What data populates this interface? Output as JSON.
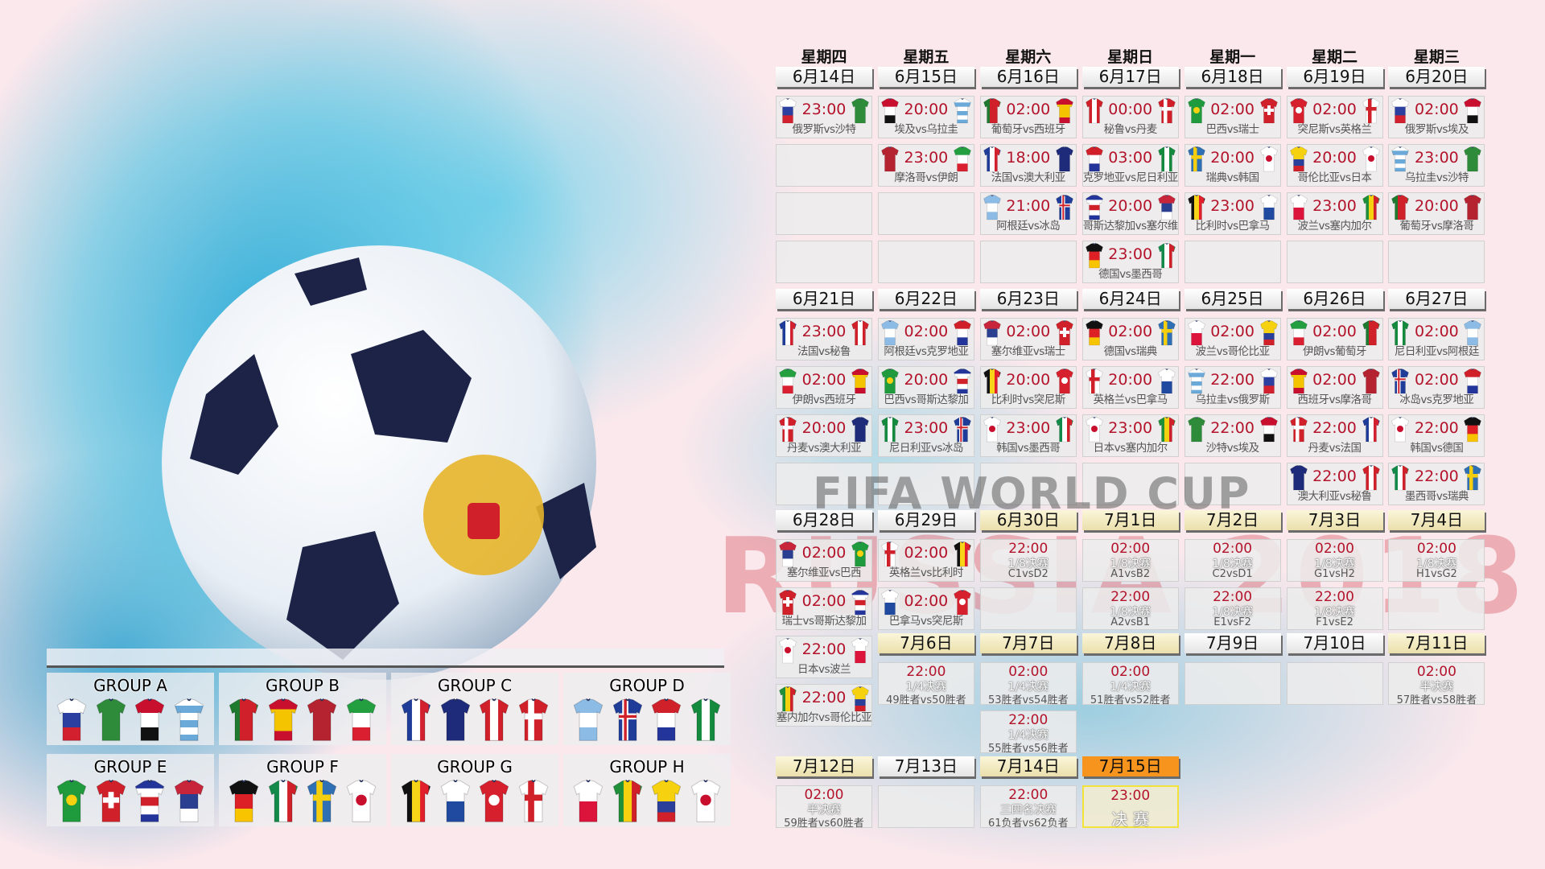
{
  "watermark": {
    "line1": "FIFA WORLD CUP",
    "line2": "RUSSIA 2018"
  },
  "weekdays": [
    "星期四",
    "星期五",
    "星期六",
    "星期日",
    "星期一",
    "星期二",
    "星期三"
  ],
  "teams": {
    "russia": {
      "pattern": "h",
      "colors": [
        "#ffffff",
        "#2b3fa0",
        "#d3202e"
      ]
    },
    "saudi": {
      "pattern": "solid",
      "colors": [
        "#2e8b3a"
      ]
    },
    "egypt": {
      "pattern": "h",
      "colors": [
        "#c8102e",
        "#ffffff",
        "#111111"
      ]
    },
    "uruguay": {
      "pattern": "h",
      "colors": [
        "#ffffff",
        "#6aa9d8",
        "#ffffff",
        "#6aa9d8",
        "#ffffff",
        "#6aa9d8"
      ]
    },
    "portugal": {
      "pattern": "v",
      "colors": [
        "#1d7a2e",
        "#d0202a",
        "#d0202a"
      ]
    },
    "spain": {
      "pattern": "h",
      "colors": [
        "#c8102e",
        "#f5c400",
        "#f5c400",
        "#c8102e"
      ]
    },
    "morocco": {
      "pattern": "solid",
      "colors": [
        "#b52330"
      ]
    },
    "iran": {
      "pattern": "h",
      "colors": [
        "#239f40",
        "#ffffff",
        "#da2030"
      ]
    },
    "france": {
      "pattern": "v",
      "colors": [
        "#1f3c99",
        "#ffffff",
        "#d3202e"
      ]
    },
    "australia": {
      "pattern": "solid",
      "colors": [
        "#1d2b7a"
      ]
    },
    "peru": {
      "pattern": "v",
      "colors": [
        "#d0202a",
        "#ffffff",
        "#d0202a"
      ]
    },
    "denmark": {
      "pattern": "cross",
      "colors": [
        "#d0202a",
        "#ffffff"
      ]
    },
    "argentina": {
      "pattern": "h",
      "colors": [
        "#8cbce6",
        "#ffffff",
        "#8cbce6"
      ]
    },
    "iceland": {
      "pattern": "cross",
      "colors": [
        "#1f3c99",
        "#ffffff",
        "#d0202a"
      ]
    },
    "croatia": {
      "pattern": "h",
      "colors": [
        "#d0202a",
        "#ffffff",
        "#23359a"
      ]
    },
    "nigeria": {
      "pattern": "v",
      "colors": [
        "#138a3e",
        "#ffffff",
        "#138a3e"
      ]
    },
    "brazil": {
      "pattern": "dot",
      "colors": [
        "#1f9a3c",
        "#f5d10f"
      ]
    },
    "switzerland": {
      "pattern": "plus",
      "colors": [
        "#d0202a",
        "#ffffff"
      ]
    },
    "costarica": {
      "pattern": "h",
      "colors": [
        "#23359a",
        "#ffffff",
        "#d0202a",
        "#ffffff",
        "#23359a"
      ]
    },
    "serbia": {
      "pattern": "h",
      "colors": [
        "#c8243a",
        "#2a3f8f",
        "#ffffff"
      ]
    },
    "germany": {
      "pattern": "h",
      "colors": [
        "#111111",
        "#dd1f26",
        "#f8c400"
      ]
    },
    "mexico": {
      "pattern": "v",
      "colors": [
        "#138a4a",
        "#ffffff",
        "#d0202a"
      ]
    },
    "sweden": {
      "pattern": "cross",
      "colors": [
        "#2f6fb3",
        "#f5cf0f"
      ]
    },
    "korea": {
      "pattern": "dot",
      "colors": [
        "#ffffff",
        "#c8102e"
      ]
    },
    "belgium": {
      "pattern": "v",
      "colors": [
        "#111111",
        "#f7d417",
        "#e2202b"
      ]
    },
    "panama": {
      "pattern": "h",
      "colors": [
        "#ffffff",
        "#1f4aa0"
      ]
    },
    "tunisia": {
      "pattern": "dot",
      "colors": [
        "#d7202e",
        "#ffffff"
      ]
    },
    "england": {
      "pattern": "cross",
      "colors": [
        "#ffffff",
        "#d0202a"
      ]
    },
    "poland": {
      "pattern": "h",
      "colors": [
        "#ffffff",
        "#dc143c"
      ]
    },
    "senegal": {
      "pattern": "v",
      "colors": [
        "#1f8f3a",
        "#f5d10f",
        "#d0202a"
      ]
    },
    "colombia": {
      "pattern": "h",
      "colors": [
        "#f5d10f",
        "#f5d10f",
        "#2a3f9a",
        "#d0202a"
      ]
    },
    "japan": {
      "pattern": "dot",
      "colors": [
        "#ffffff",
        "#c8102e"
      ]
    }
  },
  "calendar": {
    "days": [
      {
        "date": "6月14日",
        "matches": [
          {
            "time": "23:00",
            "home": "russia",
            "away": "saudi",
            "label": "俄罗斯vs沙特"
          },
          null,
          null,
          null
        ]
      },
      {
        "date": "6月15日",
        "matches": [
          {
            "time": "20:00",
            "home": "egypt",
            "away": "uruguay",
            "label": "埃及vs乌拉圭"
          },
          {
            "time": "23:00",
            "home": "morocco",
            "away": "iran",
            "label": "摩洛哥vs伊朗"
          },
          null,
          null
        ]
      },
      {
        "date": "6月16日",
        "matches": [
          {
            "time": "02:00",
            "home": "portugal",
            "away": "spain",
            "label": "葡萄牙vs西班牙"
          },
          {
            "time": "18:00",
            "home": "france",
            "away": "australia",
            "label": "法国vs澳大利亚"
          },
          {
            "time": "21:00",
            "home": "argentina",
            "away": "iceland",
            "label": "阿根廷vs冰岛"
          },
          null
        ]
      },
      {
        "date": "6月17日",
        "matches": [
          {
            "time": "00:00",
            "home": "peru",
            "away": "denmark",
            "label": "秘鲁vs丹麦"
          },
          {
            "time": "03:00",
            "home": "croatia",
            "away": "nigeria",
            "label": "克罗地亚vs尼日利亚"
          },
          {
            "time": "20:00",
            "home": "costarica",
            "away": "serbia",
            "label": "哥斯达黎加vs塞尔维亚"
          },
          {
            "time": "23:00",
            "home": "germany",
            "away": "mexico",
            "label": "德国vs墨西哥"
          }
        ]
      },
      {
        "date": "6月18日",
        "matches": [
          {
            "time": "02:00",
            "home": "brazil",
            "away": "switzerland",
            "label": "巴西vs瑞士"
          },
          {
            "time": "20:00",
            "home": "sweden",
            "away": "korea",
            "label": "瑞典vs韩国"
          },
          {
            "time": "23:00",
            "home": "belgium",
            "away": "panama",
            "label": "比利时vs巴拿马"
          },
          null
        ]
      },
      {
        "date": "6月19日",
        "matches": [
          {
            "time": "02:00",
            "home": "tunisia",
            "away": "england",
            "label": "突尼斯vs英格兰"
          },
          {
            "time": "20:00",
            "home": "colombia",
            "away": "japan",
            "label": "哥伦比亚vs日本"
          },
          {
            "time": "23:00",
            "home": "poland",
            "away": "senegal",
            "label": "波兰vs塞内加尔"
          },
          null
        ]
      },
      {
        "date": "6月20日",
        "matches": [
          {
            "time": "02:00",
            "home": "russia",
            "away": "egypt",
            "label": "俄罗斯vs埃及"
          },
          {
            "time": "23:00",
            "home": "uruguay",
            "away": "saudi",
            "label": "乌拉圭vs沙特"
          },
          {
            "time": "20:00",
            "home": "portugal",
            "away": "morocco",
            "label": "葡萄牙vs摩洛哥"
          },
          null
        ]
      },
      {
        "date": "6月21日",
        "matches": [
          {
            "time": "23:00",
            "home": "france",
            "away": "peru",
            "label": "法国vs秘鲁"
          },
          {
            "time": "02:00",
            "home": "iran",
            "away": "spain",
            "label": "伊朗vs西班牙"
          },
          {
            "time": "20:00",
            "home": "denmark",
            "away": "australia",
            "label": "丹麦vs澳大利亚"
          },
          null
        ]
      },
      {
        "date": "6月22日",
        "matches": [
          {
            "time": "02:00",
            "home": "argentina",
            "away": "croatia",
            "label": "阿根廷vs克罗地亚"
          },
          {
            "time": "20:00",
            "home": "brazil",
            "away": "costarica",
            "label": "巴西vs哥斯达黎加"
          },
          {
            "time": "23:00",
            "home": "nigeria",
            "away": "iceland",
            "label": "尼日利亚vs冰岛"
          },
          null
        ]
      },
      {
        "date": "6月23日",
        "matches": [
          {
            "time": "02:00",
            "home": "serbia",
            "away": "switzerland",
            "label": "塞尔维亚vs瑞士"
          },
          {
            "time": "20:00",
            "home": "belgium",
            "away": "tunisia",
            "label": "比利时vs突尼斯"
          },
          {
            "time": "23:00",
            "home": "korea",
            "away": "mexico",
            "label": "韩国vs墨西哥"
          },
          null
        ]
      },
      {
        "date": "6月24日",
        "matches": [
          {
            "time": "02:00",
            "home": "germany",
            "away": "sweden",
            "label": "德国vs瑞典"
          },
          {
            "time": "20:00",
            "home": "england",
            "away": "panama",
            "label": "英格兰vs巴拿马"
          },
          {
            "time": "23:00",
            "home": "japan",
            "away": "senegal",
            "label": "日本vs塞内加尔"
          },
          null
        ]
      },
      {
        "date": "6月25日",
        "matches": [
          {
            "time": "02:00",
            "home": "poland",
            "away": "colombia",
            "label": "波兰vs哥伦比亚"
          },
          {
            "time": "22:00",
            "home": "uruguay",
            "away": "russia",
            "label": "乌拉圭vs俄罗斯"
          },
          {
            "time": "22:00",
            "home": "saudi",
            "away": "egypt",
            "label": "沙特vs埃及"
          },
          null
        ]
      },
      {
        "date": "6月26日",
        "matches": [
          {
            "time": "02:00",
            "home": "iran",
            "away": "portugal",
            "label": "伊朗vs葡萄牙"
          },
          {
            "time": "02:00",
            "home": "spain",
            "away": "morocco",
            "label": "西班牙vs摩洛哥"
          },
          {
            "time": "22:00",
            "home": "denmark",
            "away": "france",
            "label": "丹麦vs法国"
          },
          {
            "time": "22:00",
            "home": "australia",
            "away": "peru",
            "label": "澳大利亚vs秘鲁"
          }
        ]
      },
      {
        "date": "6月27日",
        "matches": [
          {
            "time": "02:00",
            "home": "nigeria",
            "away": "argentina",
            "label": "尼日利亚vs阿根廷"
          },
          {
            "time": "02:00",
            "home": "iceland",
            "away": "croatia",
            "label": "冰岛vs克罗地亚"
          },
          {
            "time": "22:00",
            "home": "korea",
            "away": "germany",
            "label": "韩国vs德国"
          },
          {
            "time": "22:00",
            "home": "mexico",
            "away": "sweden",
            "label": "墨西哥vs瑞典"
          }
        ]
      },
      {
        "date": "6月28日",
        "matches": [
          {
            "time": "02:00",
            "home": "serbia",
            "away": "brazil",
            "label": "塞尔维亚vs巴西"
          },
          {
            "time": "02:00",
            "home": "switzerland",
            "away": "costarica",
            "label": "瑞士vs哥斯达黎加"
          },
          {
            "time": "22:00",
            "home": "japan",
            "away": "poland",
            "label": "日本vs波兰"
          },
          {
            "time": "22:00",
            "home": "senegal",
            "away": "colombia",
            "label": "塞内加尔vs哥伦比亚"
          }
        ]
      },
      {
        "date": "6月29日",
        "matches": [
          {
            "time": "02:00",
            "home": "england",
            "away": "belgium",
            "label": "英格兰vs比利时"
          },
          {
            "time": "02:00",
            "home": "panama",
            "away": "tunisia",
            "label": "巴拿马vs突尼斯"
          }
        ]
      },
      {
        "date": "6月30日",
        "style": "knockout",
        "matches": [
          {
            "time": "22:00",
            "stage": "1/8决赛",
            "pair": "C1vsD2"
          },
          null
        ]
      },
      {
        "date": "7月1日",
        "style": "knockout",
        "matches": [
          {
            "time": "02:00",
            "stage": "1/8决赛",
            "pair": "A1vsB2"
          },
          {
            "time": "22:00",
            "stage": "1/8决赛",
            "pair": "A2vsB1"
          }
        ]
      },
      {
        "date": "7月2日",
        "style": "knockout",
        "matches": [
          {
            "time": "02:00",
            "stage": "1/8决赛",
            "pair": "C2vsD1"
          },
          {
            "time": "22:00",
            "stage": "1/8决赛",
            "pair": "E1vsF2"
          }
        ]
      },
      {
        "date": "7月3日",
        "style": "knockout",
        "matches": [
          {
            "time": "02:00",
            "stage": "1/8决赛",
            "pair": "G1vsH2"
          },
          {
            "time": "22:00",
            "stage": "1/8决赛",
            "pair": "F1vsE2"
          }
        ]
      },
      {
        "date": "7月4日",
        "style": "knockout",
        "matches": [
          {
            "time": "02:00",
            "stage": "1/8决赛",
            "pair": "H1vsG2"
          },
          null
        ]
      },
      {
        "date": "7月6日",
        "style": "knockout",
        "matches": [
          {
            "time": "22:00",
            "stage": "1/4决赛",
            "pair": "49胜者vs50胜者"
          }
        ]
      },
      {
        "date": "7月7日",
        "style": "knockout",
        "matches": [
          {
            "time": "02:00",
            "stage": "1/4决赛",
            "pair": "53胜者vs54胜者"
          },
          {
            "time": "22:00",
            "stage": "1/4决赛",
            "pair": "55胜者vs56胜者"
          }
        ]
      },
      {
        "date": "7月8日",
        "style": "knockout",
        "matches": [
          {
            "time": "02:00",
            "stage": "1/4决赛",
            "pair": "51胜者vs52胜者"
          }
        ]
      },
      {
        "date": "7月9日",
        "matches": [
          null
        ]
      },
      {
        "date": "7月10日",
        "matches": [
          null
        ]
      },
      {
        "date": "7月11日",
        "style": "knockout",
        "matches": [
          {
            "time": "02:00",
            "stage": "半决赛",
            "pair": "57胜者vs58胜者"
          }
        ]
      },
      {
        "date": "7月12日",
        "style": "knockout",
        "matches": [
          {
            "time": "02:00",
            "stage": "半决赛",
            "pair": "59胜者vs60胜者"
          }
        ]
      },
      {
        "date": "7月13日",
        "matches": [
          null
        ]
      },
      {
        "date": "7月14日",
        "style": "knockout",
        "matches": [
          {
            "time": "22:00",
            "stage": "三四名决赛",
            "pair": "61负者vs62负者"
          }
        ]
      },
      {
        "date": "7月15日",
        "style": "final",
        "matches": [
          {
            "time": "23:00",
            "stage": "决 赛",
            "final": true
          }
        ]
      }
    ]
  },
  "groups": [
    {
      "name": "GROUP A",
      "teams": [
        "russia",
        "saudi",
        "egypt",
        "uruguay"
      ]
    },
    {
      "name": "GROUP B",
      "teams": [
        "portugal",
        "spain",
        "morocco",
        "iran"
      ]
    },
    {
      "name": "GROUP C",
      "teams": [
        "france",
        "australia",
        "peru",
        "denmark"
      ]
    },
    {
      "name": "GROUP D",
      "teams": [
        "argentina",
        "iceland",
        "croatia",
        "nigeria"
      ]
    },
    {
      "name": "GROUP E",
      "teams": [
        "brazil",
        "switzerland",
        "costarica",
        "serbia"
      ]
    },
    {
      "name": "GROUP F",
      "teams": [
        "germany",
        "mexico",
        "sweden",
        "korea"
      ]
    },
    {
      "name": "GROUP G",
      "teams": [
        "belgium",
        "panama",
        "tunisia",
        "england"
      ]
    },
    {
      "name": "GROUP H",
      "teams": [
        "poland",
        "senegal",
        "colombia",
        "japan"
      ]
    }
  ]
}
